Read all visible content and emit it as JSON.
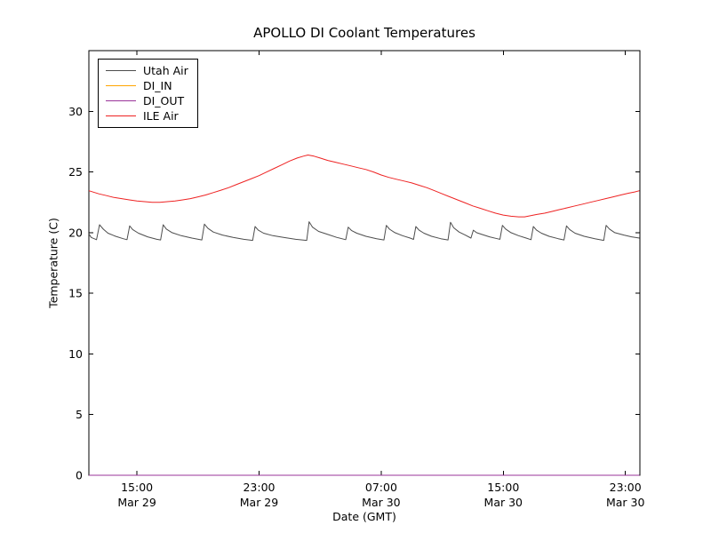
{
  "figure": {
    "background": "#ffffff",
    "frame_color": "#000000"
  },
  "chart_data": {
    "type": "line",
    "title": "APOLLO DI Coolant Temperatures",
    "xlabel": "Date (GMT)",
    "ylabel": "Temperature (C)",
    "x_unit": "hours since Mar 29 00:00 GMT",
    "xlim": [
      11.85,
      47.95
    ],
    "ylim": [
      0,
      35
    ],
    "grid": false,
    "tick_direction": "in",
    "legend_position": "upper left",
    "y_ticks": [
      {
        "v": 0,
        "label": "0"
      },
      {
        "v": 5,
        "label": "5"
      },
      {
        "v": 10,
        "label": "10"
      },
      {
        "v": 15,
        "label": "15"
      },
      {
        "v": 20,
        "label": "20"
      },
      {
        "v": 25,
        "label": "25"
      },
      {
        "v": 30,
        "label": "30"
      }
    ],
    "x_ticks": [
      {
        "t": 15,
        "time": "15:00",
        "date": "Mar 29"
      },
      {
        "t": 23,
        "time": "23:00",
        "date": "Mar 29"
      },
      {
        "t": 31,
        "time": "07:00",
        "date": "Mar 30"
      },
      {
        "t": 39,
        "time": "15:00",
        "date": "Mar 30"
      },
      {
        "t": 47,
        "time": "23:00",
        "date": "Mar 30"
      }
    ],
    "series": [
      {
        "name": "Utah Air",
        "color": "#4d4d4d",
        "points": [
          [
            11.85,
            19.9
          ],
          [
            12.0,
            19.6
          ],
          [
            12.35,
            19.42
          ],
          [
            12.55,
            20.65
          ],
          [
            12.8,
            20.28
          ],
          [
            13.1,
            19.95
          ],
          [
            13.6,
            19.7
          ],
          [
            14.1,
            19.5
          ],
          [
            14.35,
            19.42
          ],
          [
            14.52,
            20.55
          ],
          [
            14.72,
            20.25
          ],
          [
            15.1,
            19.95
          ],
          [
            15.7,
            19.65
          ],
          [
            16.3,
            19.45
          ],
          [
            16.55,
            19.4
          ],
          [
            16.72,
            20.65
          ],
          [
            16.92,
            20.3
          ],
          [
            17.3,
            20.0
          ],
          [
            17.9,
            19.75
          ],
          [
            18.6,
            19.55
          ],
          [
            19.25,
            19.4
          ],
          [
            19.42,
            20.7
          ],
          [
            19.65,
            20.35
          ],
          [
            20.0,
            20.05
          ],
          [
            20.6,
            19.8
          ],
          [
            21.3,
            19.6
          ],
          [
            22.0,
            19.45
          ],
          [
            22.58,
            19.36
          ],
          [
            22.74,
            20.5
          ],
          [
            22.95,
            20.2
          ],
          [
            23.3,
            19.95
          ],
          [
            23.9,
            19.75
          ],
          [
            24.6,
            19.6
          ],
          [
            25.4,
            19.45
          ],
          [
            26.12,
            19.36
          ],
          [
            26.28,
            20.9
          ],
          [
            26.5,
            20.45
          ],
          [
            26.9,
            20.1
          ],
          [
            27.5,
            19.85
          ],
          [
            28.1,
            19.6
          ],
          [
            28.68,
            19.42
          ],
          [
            28.84,
            20.45
          ],
          [
            29.05,
            20.18
          ],
          [
            29.4,
            19.95
          ],
          [
            30.0,
            19.7
          ],
          [
            30.7,
            19.5
          ],
          [
            31.18,
            19.4
          ],
          [
            31.34,
            20.6
          ],
          [
            31.55,
            20.28
          ],
          [
            31.9,
            20.0
          ],
          [
            32.4,
            19.75
          ],
          [
            32.9,
            19.55
          ],
          [
            33.12,
            19.44
          ],
          [
            33.27,
            20.5
          ],
          [
            33.48,
            20.2
          ],
          [
            33.8,
            19.95
          ],
          [
            34.3,
            19.7
          ],
          [
            34.9,
            19.5
          ],
          [
            35.38,
            19.4
          ],
          [
            35.54,
            20.85
          ],
          [
            35.75,
            20.4
          ],
          [
            36.1,
            20.05
          ],
          [
            36.5,
            19.8
          ],
          [
            36.88,
            19.55
          ],
          [
            37.04,
            20.2
          ],
          [
            37.25,
            20.0
          ],
          [
            37.6,
            19.85
          ],
          [
            38.1,
            19.65
          ],
          [
            38.6,
            19.5
          ],
          [
            38.78,
            19.45
          ],
          [
            38.94,
            20.6
          ],
          [
            39.15,
            20.3
          ],
          [
            39.5,
            20.0
          ],
          [
            40.0,
            19.75
          ],
          [
            40.5,
            19.55
          ],
          [
            40.82,
            19.42
          ],
          [
            40.97,
            20.5
          ],
          [
            41.18,
            20.2
          ],
          [
            41.5,
            19.95
          ],
          [
            42.0,
            19.7
          ],
          [
            42.6,
            19.5
          ],
          [
            42.98,
            19.4
          ],
          [
            43.14,
            20.55
          ],
          [
            43.35,
            20.25
          ],
          [
            43.7,
            19.95
          ],
          [
            44.3,
            19.7
          ],
          [
            45.0,
            19.5
          ],
          [
            45.58,
            19.36
          ],
          [
            45.74,
            20.6
          ],
          [
            45.95,
            20.3
          ],
          [
            46.3,
            20.0
          ],
          [
            46.9,
            19.8
          ],
          [
            47.4,
            19.65
          ],
          [
            47.92,
            19.55
          ]
        ]
      },
      {
        "name": "DI_IN",
        "color": "#ffa500",
        "points": [
          [
            11.85,
            0
          ],
          [
            47.92,
            0
          ]
        ]
      },
      {
        "name": "DI_OUT",
        "color": "#993399",
        "points": [
          [
            11.85,
            0
          ],
          [
            47.92,
            0
          ]
        ]
      },
      {
        "name": "ILE Air",
        "color": "#ee2222",
        "points": [
          [
            11.85,
            23.45
          ],
          [
            12.5,
            23.2
          ],
          [
            13,
            23.05
          ],
          [
            13.5,
            22.9
          ],
          [
            14,
            22.8
          ],
          [
            14.5,
            22.7
          ],
          [
            15,
            22.6
          ],
          [
            15.5,
            22.55
          ],
          [
            16,
            22.5
          ],
          [
            16.5,
            22.5
          ],
          [
            17,
            22.55
          ],
          [
            17.5,
            22.6
          ],
          [
            18,
            22.7
          ],
          [
            18.5,
            22.8
          ],
          [
            19,
            22.95
          ],
          [
            19.5,
            23.1
          ],
          [
            20,
            23.3
          ],
          [
            20.5,
            23.5
          ],
          [
            21,
            23.7
          ],
          [
            21.5,
            23.95
          ],
          [
            22,
            24.2
          ],
          [
            22.5,
            24.45
          ],
          [
            23,
            24.7
          ],
          [
            23.5,
            25.0
          ],
          [
            24,
            25.3
          ],
          [
            24.5,
            25.6
          ],
          [
            25,
            25.9
          ],
          [
            25.5,
            26.15
          ],
          [
            25.9,
            26.3
          ],
          [
            26.2,
            26.4
          ],
          [
            26.6,
            26.3
          ],
          [
            27,
            26.15
          ],
          [
            27.5,
            25.95
          ],
          [
            28,
            25.8
          ],
          [
            28.5,
            25.65
          ],
          [
            29,
            25.5
          ],
          [
            29.5,
            25.35
          ],
          [
            30,
            25.2
          ],
          [
            30.5,
            25.0
          ],
          [
            31,
            24.75
          ],
          [
            31.5,
            24.55
          ],
          [
            32,
            24.4
          ],
          [
            32.5,
            24.25
          ],
          [
            33,
            24.1
          ],
          [
            33.5,
            23.9
          ],
          [
            34,
            23.7
          ],
          [
            34.5,
            23.45
          ],
          [
            35,
            23.2
          ],
          [
            35.5,
            22.95
          ],
          [
            36,
            22.7
          ],
          [
            36.5,
            22.45
          ],
          [
            37,
            22.2
          ],
          [
            37.5,
            22.0
          ],
          [
            38,
            21.8
          ],
          [
            38.5,
            21.6
          ],
          [
            39,
            21.45
          ],
          [
            39.5,
            21.35
          ],
          [
            40,
            21.3
          ],
          [
            40.4,
            21.3
          ],
          [
            40.8,
            21.4
          ],
          [
            41.2,
            21.5
          ],
          [
            41.7,
            21.6
          ],
          [
            42.2,
            21.75
          ],
          [
            42.7,
            21.9
          ],
          [
            43.2,
            22.05
          ],
          [
            43.7,
            22.2
          ],
          [
            44.2,
            22.35
          ],
          [
            44.7,
            22.5
          ],
          [
            45.2,
            22.65
          ],
          [
            45.7,
            22.8
          ],
          [
            46.2,
            22.95
          ],
          [
            46.7,
            23.1
          ],
          [
            47.2,
            23.25
          ],
          [
            47.6,
            23.35
          ],
          [
            47.92,
            23.45
          ]
        ]
      }
    ]
  }
}
